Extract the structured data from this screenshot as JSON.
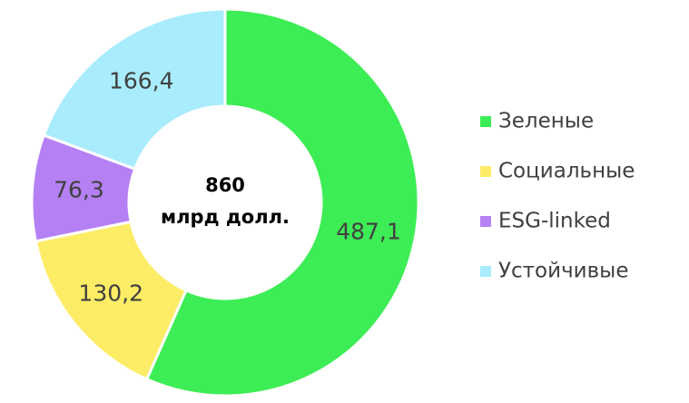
{
  "chart_data": {
    "type": "donut",
    "center_text": [
      "860",
      "млрд долл."
    ],
    "categories": [
      "Зеленые",
      "Социальные",
      "ESG-linked",
      "Устойчивые"
    ],
    "values": [
      487.1,
      130.2,
      76.3,
      166.4
    ],
    "value_labels": [
      "487,1",
      "130,2",
      "76,3",
      "166,4"
    ],
    "colors": [
      "#3ded55",
      "#fdec66",
      "#b580f4",
      "#a8ecfd"
    ],
    "legend": "right"
  }
}
